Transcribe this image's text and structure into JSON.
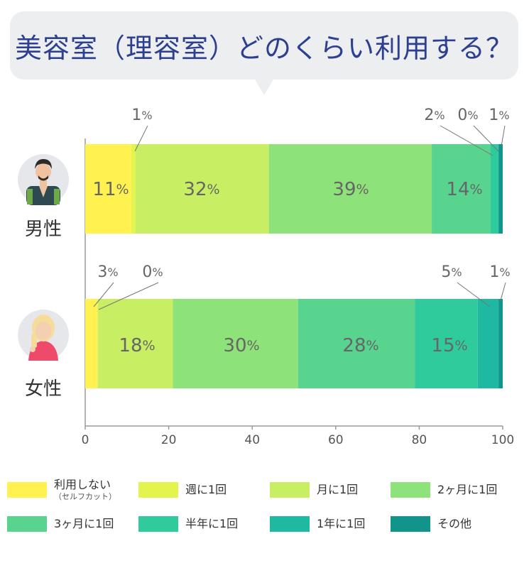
{
  "title": "美容室（理容室）どのくらい利用する？",
  "chart_data": {
    "type": "bar",
    "orientation": "horizontal",
    "stacked": true,
    "categories": [
      "男性",
      "女性"
    ],
    "series": [
      {
        "name": "利用しない",
        "name_sub": "（セルフカット）",
        "color": "#fff250",
        "values": [
          11,
          3
        ]
      },
      {
        "name": "週に1回",
        "color": "#e3f54d",
        "values": [
          1,
          0
        ]
      },
      {
        "name": "月に1回",
        "color": "#c8ee63",
        "values": [
          32,
          18
        ]
      },
      {
        "name": "2ヶ月に1回",
        "color": "#8ee27a",
        "values": [
          39,
          30
        ]
      },
      {
        "name": "3ヶ月に1回",
        "color": "#58d48f",
        "values": [
          14,
          28
        ]
      },
      {
        "name": "半年に1回",
        "color": "#2fcb9c",
        "values": [
          2,
          15
        ]
      },
      {
        "name": "1年に1回",
        "color": "#1fb8a0",
        "values": [
          0,
          5
        ]
      },
      {
        "name": "その他",
        "color": "#11958b",
        "values": [
          1,
          1
        ]
      }
    ],
    "bar_totals_used": [
      100,
      100
    ],
    "xlim": [
      0,
      100
    ],
    "xticks": [
      0,
      20,
      40,
      60,
      80,
      100
    ],
    "unit": "%",
    "label_color": "#666666",
    "legend_position": "bottom"
  }
}
